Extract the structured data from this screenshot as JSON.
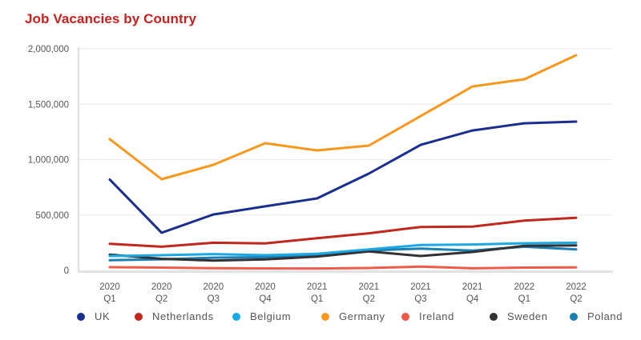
{
  "chart_data": {
    "type": "line",
    "title": "Job Vacancies by Country",
    "xlabel": "",
    "ylabel": "",
    "ylim": [
      0,
      2000000
    ],
    "yticks": [
      0,
      500000,
      1000000,
      1500000,
      2000000
    ],
    "ytick_labels": [
      "0",
      "500,000",
      "1,000,000",
      "1,500,000",
      "2,000,000"
    ],
    "grid": true,
    "legend_position": "bottom",
    "categories": [
      [
        "2020",
        "Q1"
      ],
      [
        "2020",
        "Q2"
      ],
      [
        "2020",
        "Q3"
      ],
      [
        "2020",
        "Q4"
      ],
      [
        "2021",
        "Q1"
      ],
      [
        "2021",
        "Q2"
      ],
      [
        "2021",
        "Q3"
      ],
      [
        "2021",
        "Q4"
      ],
      [
        "2022",
        "Q1"
      ],
      [
        "2022",
        "Q2"
      ]
    ],
    "series": [
      {
        "name": "UK",
        "color": "#1a2e8f",
        "values": [
          820000,
          340000,
          505000,
          578000,
          650000,
          874000,
          1133000,
          1263000,
          1328000,
          1343000
        ]
      },
      {
        "name": "Netherlands",
        "color": "#c0271d",
        "values": [
          240000,
          214000,
          250000,
          243000,
          290000,
          335000,
          392000,
          395000,
          450000,
          475000
        ]
      },
      {
        "name": "Belgium",
        "color": "#1ca8e3",
        "values": [
          130000,
          137000,
          147000,
          137000,
          150000,
          190000,
          229000,
          234000,
          245000,
          250000
        ]
      },
      {
        "name": "Germany",
        "color": "#f7981d",
        "values": [
          1185000,
          823000,
          953000,
          1148000,
          1083000,
          1126000,
          1393000,
          1660000,
          1725000,
          1942000
        ]
      },
      {
        "name": "Ireland",
        "color": "#ef5b4a",
        "values": [
          29000,
          25000,
          20000,
          18000,
          17000,
          22000,
          34000,
          19000,
          25000,
          27000
        ]
      },
      {
        "name": "Sweden",
        "color": "#333133",
        "values": [
          142000,
          105000,
          89000,
          99000,
          125000,
          171000,
          130000,
          166000,
          222000,
          226000
        ]
      },
      {
        "name": "Poland",
        "color": "#1b7fb3",
        "values": [
          92000,
          100000,
          115000,
          120000,
          140000,
          180000,
          197000,
          178000,
          214000,
          190000
        ]
      }
    ]
  },
  "colors": {
    "title": "#c8201d",
    "grid": "#ececec",
    "axis": "#e2e2e2",
    "tick_text": "#555555"
  }
}
